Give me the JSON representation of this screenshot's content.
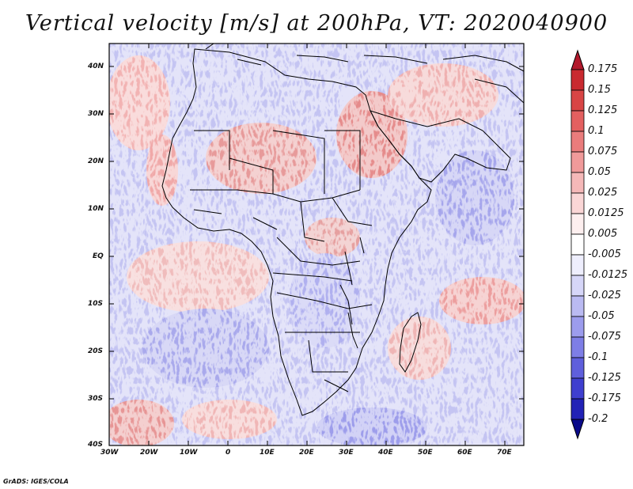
{
  "title": "Vertical velocity [m/s] at 200hPa, VT: 2020040900",
  "credit": "GrADS: IGES/COLA",
  "axes": {
    "lat_labels": [
      "40N",
      "30N",
      "20N",
      "10N",
      "EQ",
      "10S",
      "20S",
      "30S",
      "40S"
    ],
    "lon_labels": [
      "30W",
      "20W",
      "10W",
      "0",
      "10E",
      "20E",
      "30E",
      "40E",
      "50E",
      "60E",
      "70E"
    ]
  },
  "colorbar": {
    "levels": [
      "0.175",
      "0.15",
      "0.125",
      "0.1",
      "0.075",
      "0.05",
      "0.025",
      "0.0125",
      "0.005",
      "-0.005",
      "-0.0125",
      "-0.025",
      "-0.05",
      "-0.075",
      "-0.1",
      "-0.125",
      "-0.175",
      "-0.2"
    ],
    "colors": [
      "#b2182b",
      "#c92a30",
      "#d84545",
      "#e36060",
      "#ea7c7c",
      "#f09a9a",
      "#f5b8b8",
      "#fad6d6",
      "#fdefef",
      "#ffffff",
      "#eeeefd",
      "#d6d6f8",
      "#babaf2",
      "#9c9ced",
      "#7e7ee6",
      "#5f5fdc",
      "#3f3fcf",
      "#2222b6",
      "#0a0a8a"
    ]
  }
}
